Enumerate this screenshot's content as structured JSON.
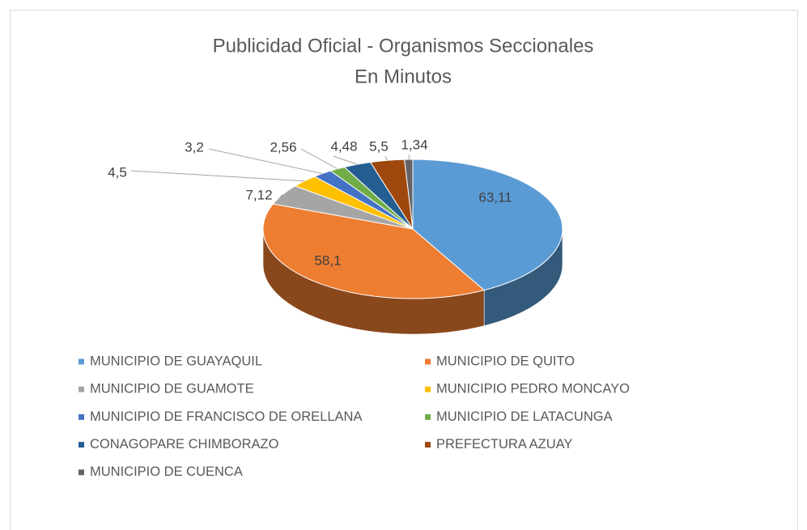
{
  "chart_data": {
    "type": "pie3d",
    "title": "Publicidad Oficial - Organismos Seccionales",
    "subtitle": "En Minutos",
    "categories": [
      "MUNICIPIO DE GUAYAQUIL",
      "MUNICIPIO DE QUITO",
      "MUNICIPIO DE GUAMOTE",
      "MUNICIPIO PEDRO MONCAYO",
      "MUNICIPIO DE FRANCISCO DE ORELLANA",
      "MUNICIPIO DE LATACUNGA",
      "CONAGOPARE CHIMBORAZO",
      "PREFECTURA AZUAY",
      "MUNICIPIO DE CUENCA"
    ],
    "values": [
      63.11,
      58.1,
      7.12,
      4.5,
      3.2,
      2.56,
      4.48,
      5.5,
      1.34
    ],
    "value_labels": [
      "63,11",
      "58,1",
      "7,12",
      "4,5",
      "3,2",
      "2,56",
      "4,48",
      "5,5",
      "1,34"
    ],
    "colors": [
      "#5b9bd5",
      "#ed7d31",
      "#a5a5a5",
      "#ffc000",
      "#4472c4",
      "#70ad47",
      "#255e91",
      "#9e480e",
      "#636363"
    ],
    "legend": "bottom"
  }
}
